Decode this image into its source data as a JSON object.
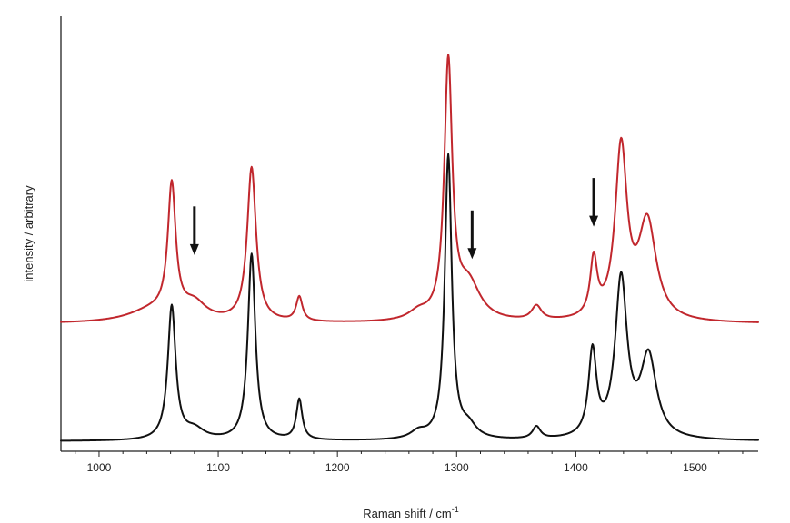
{
  "chart_data": {
    "type": "line",
    "title": "",
    "xlabel": "Raman shift / cm",
    "xlabel_superscript": "-1",
    "ylabel": "intensity / arbitrary",
    "xlim": [
      968,
      1553
    ],
    "ylim": [
      0,
      100
    ],
    "grid": false,
    "x_ticks": [
      1000,
      1100,
      1200,
      1300,
      1400,
      1500
    ],
    "series": [
      {
        "name": "black spectrum",
        "color": "#111111",
        "baseline": 0,
        "peaks": [
          {
            "center": 1061,
            "height": 33,
            "width": 4
          },
          {
            "center": 1080,
            "height": 2.5,
            "width": 10
          },
          {
            "center": 1128,
            "height": 46,
            "width": 3.8
          },
          {
            "center": 1168,
            "height": 10,
            "width": 3
          },
          {
            "center": 1268,
            "height": 1.8,
            "width": 8
          },
          {
            "center": 1293,
            "height": 70,
            "width": 3.5
          },
          {
            "center": 1310,
            "height": 3,
            "width": 8
          },
          {
            "center": 1367,
            "height": 3,
            "width": 4
          },
          {
            "center": 1414,
            "height": 21,
            "width": 4
          },
          {
            "center": 1438,
            "height": 39,
            "width": 6
          },
          {
            "center": 1461,
            "height": 20,
            "width": 8
          }
        ]
      },
      {
        "name": "red spectrum",
        "color": "#c1272d",
        "baseline": 29,
        "peaks": [
          {
            "center": 1061,
            "height": 32,
            "width": 4
          },
          {
            "center": 1080,
            "height": 4,
            "width": 12
          },
          {
            "center": 1045,
            "height": 3,
            "width": 25
          },
          {
            "center": 1128,
            "height": 38,
            "width": 4.5
          },
          {
            "center": 1168,
            "height": 6,
            "width": 3.2
          },
          {
            "center": 1268,
            "height": 2,
            "width": 10
          },
          {
            "center": 1293,
            "height": 63,
            "width": 4
          },
          {
            "center": 1310,
            "height": 9,
            "width": 12
          },
          {
            "center": 1367,
            "height": 3.5,
            "width": 5
          },
          {
            "center": 1415,
            "height": 14,
            "width": 3.5
          },
          {
            "center": 1438,
            "height": 42,
            "width": 6
          },
          {
            "center": 1460,
            "height": 24,
            "width": 9
          }
        ]
      }
    ],
    "annotations": [
      {
        "type": "arrow-down",
        "x": 1080,
        "y_top": 58,
        "y_bottom": 46
      },
      {
        "type": "arrow-down",
        "x": 1313,
        "y_top": 57,
        "y_bottom": 45
      },
      {
        "type": "arrow-down",
        "x": 1415,
        "y_top": 65,
        "y_bottom": 53
      }
    ]
  }
}
